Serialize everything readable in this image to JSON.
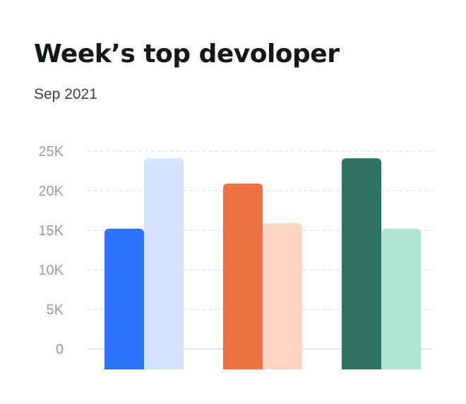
{
  "card": {
    "title": "Week’s top devoloper",
    "subtitle": "Sep 2021"
  },
  "chart_data": {
    "type": "bar",
    "title": "Week’s top devoloper",
    "subtitle": "Sep 2021",
    "xlabel": "",
    "ylabel": "",
    "categories": [
      "",
      "",
      ""
    ],
    "ylim": [
      0,
      25000
    ],
    "yticks": [
      0,
      5000,
      10000,
      15000,
      20000,
      25000
    ],
    "ytick_labels": [
      "0",
      "5K",
      "10K",
      "15K",
      "20K",
      "25K"
    ],
    "grid": true,
    "legend": "none",
    "series": [
      {
        "values": [
          15200,
          20900,
          24100
        ],
        "colors": [
          "#2b74ff",
          "#ed7243",
          "#2e7460"
        ]
      },
      {
        "values": [
          24100,
          15900,
          15200
        ],
        "colors": [
          "#d4e3ff",
          "#ffd4c3",
          "#b1e5d3"
        ]
      }
    ]
  }
}
